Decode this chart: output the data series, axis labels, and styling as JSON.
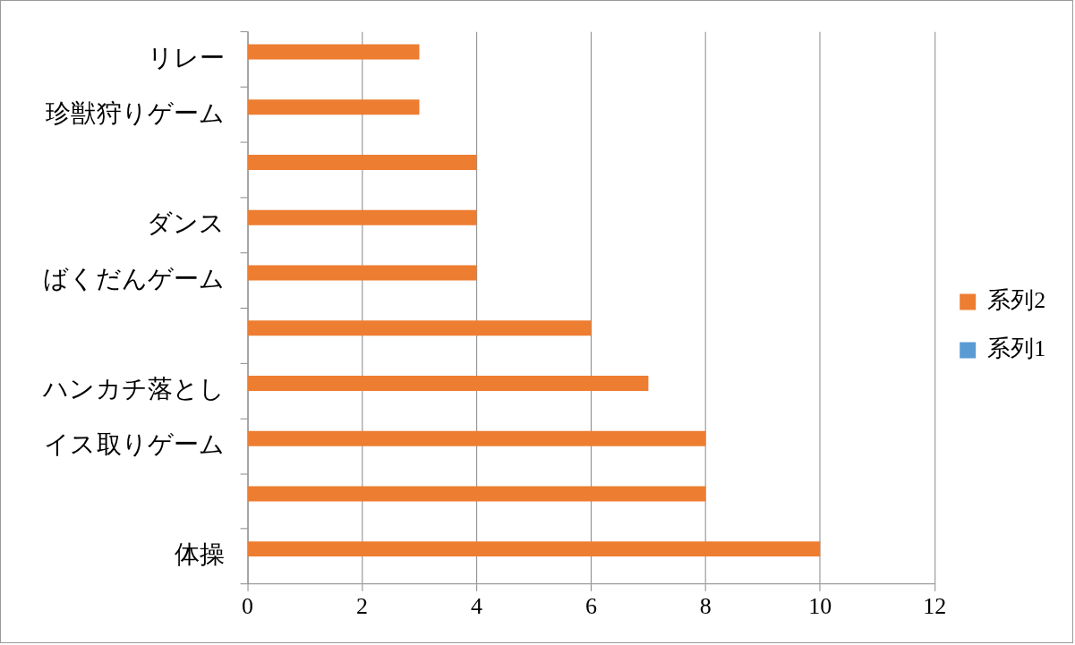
{
  "chart_data": {
    "type": "bar",
    "orientation": "horizontal",
    "categories": [
      "リレー",
      "珍獣狩りゲーム",
      null,
      "ダンス",
      "ばくだんゲーム",
      null,
      "ハンカチ落とし",
      "イス取りゲーム",
      null,
      "体操"
    ],
    "series": [
      {
        "name": "系列2",
        "color": "#ed7d31",
        "values": [
          3,
          3,
          4,
          4,
          4,
          6,
          7,
          8,
          8,
          10
        ]
      },
      {
        "name": "系列1",
        "color": "#5b9bd5",
        "values": [
          null,
          null,
          null,
          null,
          null,
          null,
          null,
          null,
          null,
          null
        ]
      }
    ],
    "xlim": [
      0,
      12
    ],
    "xticks": [
      0,
      2,
      4,
      6,
      8,
      10,
      12
    ],
    "grid": "x",
    "legend": "right"
  }
}
